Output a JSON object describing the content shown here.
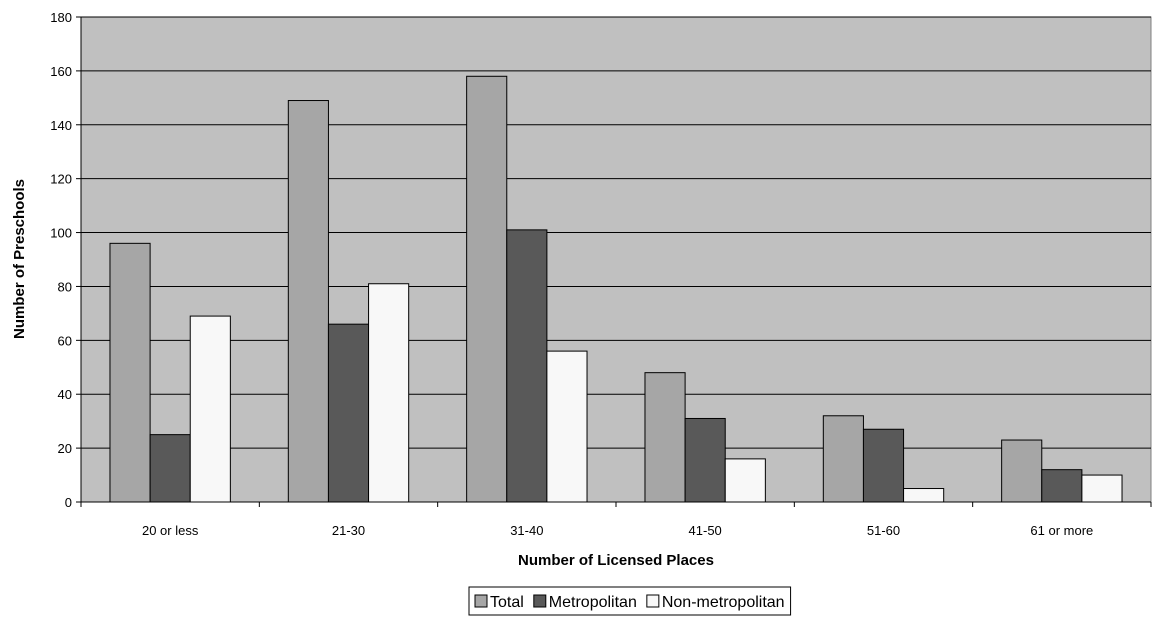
{
  "chart_data": {
    "type": "bar",
    "title": "",
    "xlabel": "Number of Licensed Places",
    "ylabel": "Number of Preschools",
    "ylim": [
      0,
      180
    ],
    "yticks": [
      0,
      20,
      40,
      60,
      80,
      100,
      120,
      140,
      160,
      180
    ],
    "grid": true,
    "legend_position": "bottom",
    "categories": [
      "20 or less",
      "21-30",
      "31-40",
      "41-50",
      "51-60",
      "61 or more"
    ],
    "series": [
      {
        "name": "Total",
        "color": "#a6a6a6",
        "values": [
          96,
          149,
          158,
          48,
          32,
          23
        ]
      },
      {
        "name": "Metropolitan",
        "color": "#595959",
        "values": [
          25,
          66,
          101,
          31,
          27,
          12
        ]
      },
      {
        "name": "Non-metropolitan",
        "color": "#f8f8f8",
        "values": [
          69,
          81,
          56,
          16,
          5,
          10
        ]
      }
    ],
    "plot_background": "#c0c0c0"
  }
}
